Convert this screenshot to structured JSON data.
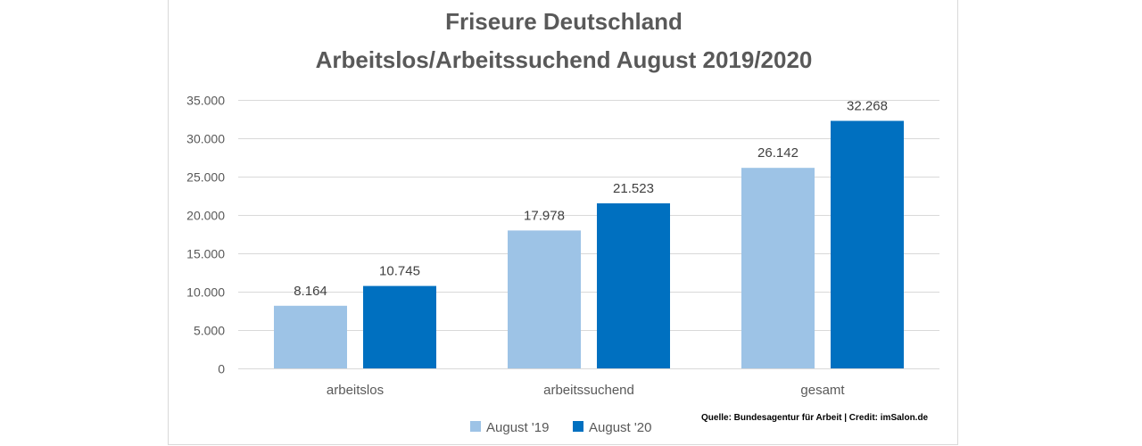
{
  "chart_data": {
    "type": "bar",
    "title": [
      "Friseure Deutschland",
      "Arbeitslos/Arbeitssuchend  August 2019/2020"
    ],
    "categories": [
      "arbeitslos",
      "arbeitssuchend",
      "gesamt"
    ],
    "series": [
      {
        "name": "August '19",
        "values": [
          8164,
          17978,
          26142
        ],
        "labels": [
          "8.164",
          "17.978",
          "26.142"
        ],
        "color": "#9dc3e6"
      },
      {
        "name": "August '20",
        "values": [
          10745,
          21523,
          32268
        ],
        "labels": [
          "10.745",
          "21.523",
          "32.268"
        ],
        "color": "#0070c0"
      }
    ],
    "ylim": [
      0,
      35000
    ],
    "yticks": [
      0,
      5000,
      10000,
      15000,
      20000,
      25000,
      30000,
      35000
    ],
    "ytick_labels": [
      "0",
      "5.000",
      "10.000",
      "15.000",
      "20.000",
      "25.000",
      "30.000",
      "35.000"
    ],
    "grid": true,
    "legend": "bottom",
    "gridline_color": "#d9d9d9",
    "source": "Quelle: Bundesagentur für Arbeit | Credit: imSalon.de"
  }
}
